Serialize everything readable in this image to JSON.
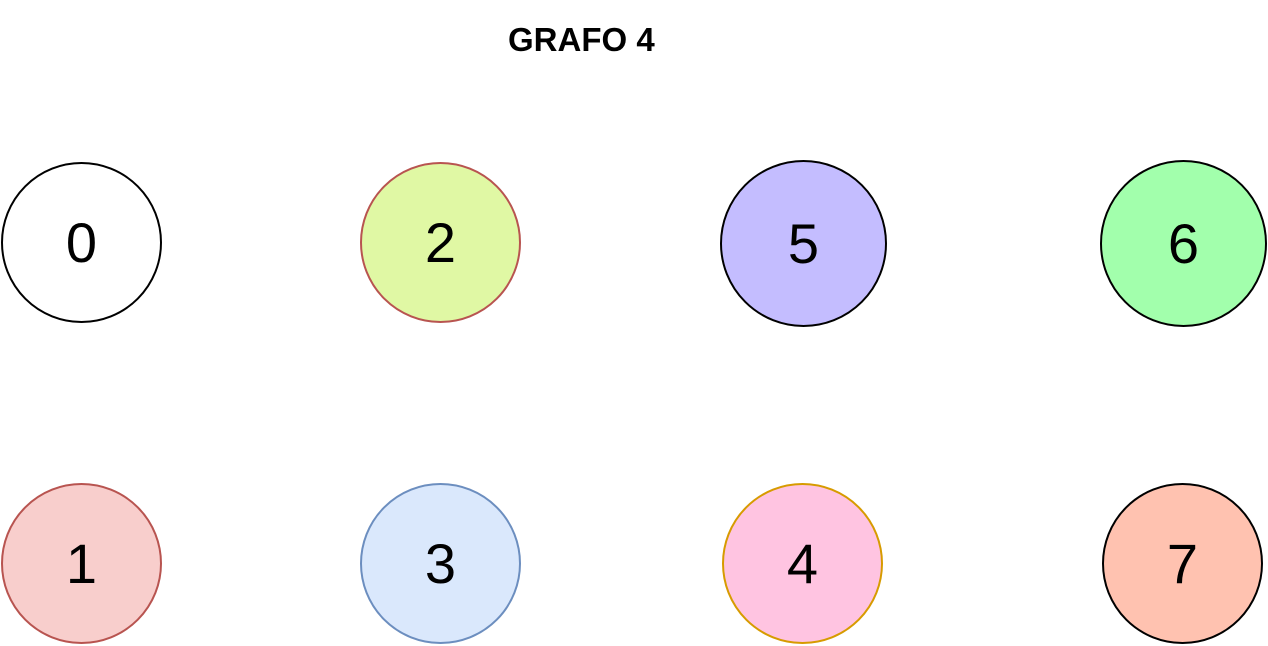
{
  "title": "GRAFO 4",
  "nodes": [
    {
      "id": "0",
      "label": "0",
      "fill": "#ffffff",
      "stroke": "#000000"
    },
    {
      "id": "1",
      "label": "1",
      "fill": "#f8cecc",
      "stroke": "#b85450"
    },
    {
      "id": "2",
      "label": "2",
      "fill": "#e0f8a4",
      "stroke": "#b85450"
    },
    {
      "id": "3",
      "label": "3",
      "fill": "#dae8fc",
      "stroke": "#6c8ebf"
    },
    {
      "id": "4",
      "label": "4",
      "fill": "#ffc4e1",
      "stroke": "#d79b00"
    },
    {
      "id": "5",
      "label": "5",
      "fill": "#c4bdff",
      "stroke": "#000000"
    },
    {
      "id": "6",
      "label": "6",
      "fill": "#a2ffac",
      "stroke": "#000000"
    },
    {
      "id": "7",
      "label": "7",
      "fill": "#ffc2b0",
      "stroke": "#000000"
    }
  ]
}
